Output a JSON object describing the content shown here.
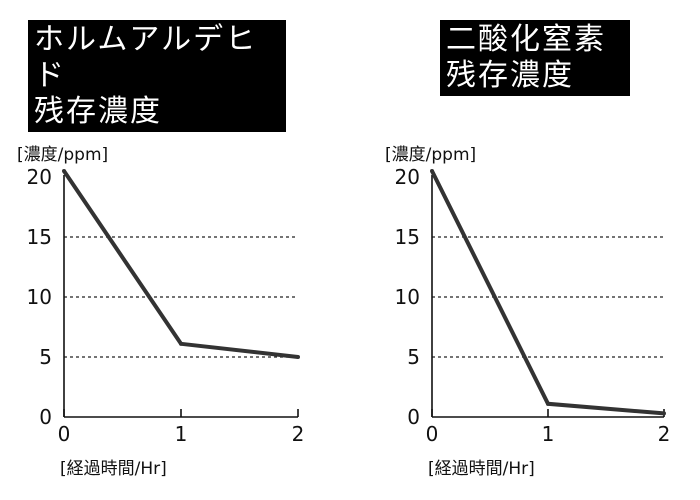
{
  "chart_data": [
    {
      "type": "line",
      "title": "ホルムアルデヒド\n残存濃度",
      "ylabel": "[濃度/ppm]",
      "xlabel": "[経過時間/Hr]",
      "x": [
        0,
        1,
        2
      ],
      "y": [
        20.5,
        6.1,
        5.0
      ],
      "xlim": [
        0,
        2
      ],
      "ylim": [
        0,
        20
      ],
      "xticks": [
        0,
        1,
        2
      ],
      "yticks": [
        0,
        5,
        10,
        15,
        20
      ],
      "grid": "dashed horizontal at 5, 10, 15",
      "line_color": "#333333"
    },
    {
      "type": "line",
      "title": "二酸化窒素\n残存濃度",
      "ylabel": "[濃度/ppm]",
      "xlabel": "[経過時間/Hr]",
      "x": [
        0,
        1,
        2
      ],
      "y": [
        20.5,
        1.1,
        0.3
      ],
      "xlim": [
        0,
        2
      ],
      "ylim": [
        0,
        20
      ],
      "xticks": [
        0,
        1,
        2
      ],
      "yticks": [
        0,
        5,
        10,
        15,
        20
      ],
      "grid": "dashed horizontal at 5, 10, 15",
      "line_color": "#333333"
    }
  ]
}
